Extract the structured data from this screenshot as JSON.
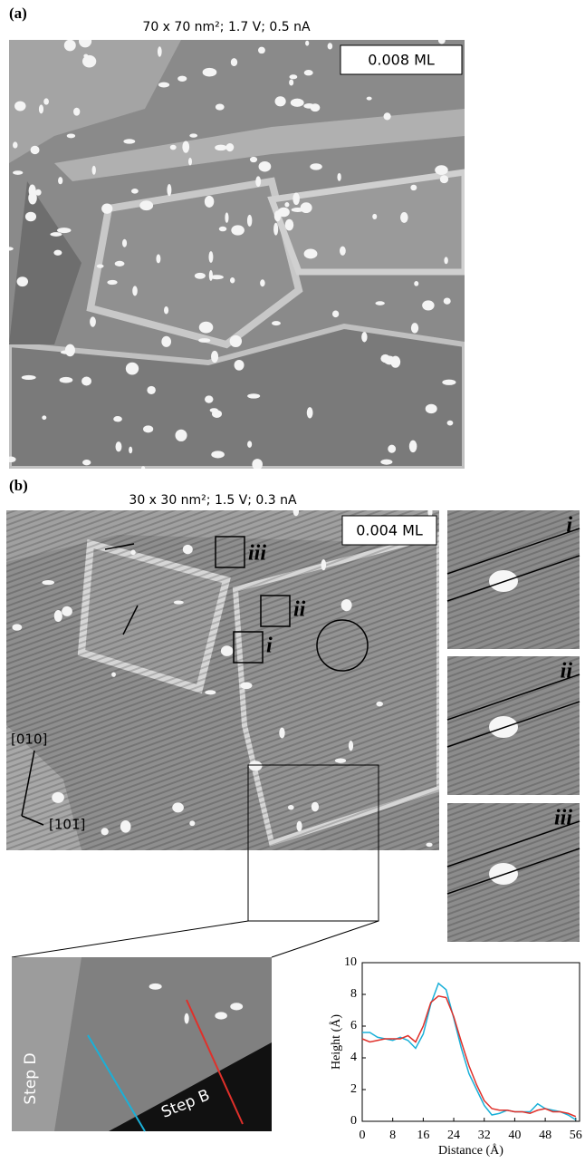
{
  "panel_a": {
    "label": "(a)",
    "caption": "70 x 70 nm²; 1.7 V; 0.5 nA",
    "coverage": "0.008 ML"
  },
  "panel_b": {
    "label": "(b)",
    "caption": "30 x 30 nm²; 1.5 V; 0.3 nA",
    "coverage": "0.004 ML",
    "box_labels": [
      "iii",
      "ii",
      "i"
    ],
    "directions": [
      "[010]",
      "[101̄]"
    ],
    "insets": [
      "i",
      "ii",
      "iii"
    ],
    "steps": [
      "Step D",
      "Step B"
    ]
  },
  "chart_data": {
    "type": "line",
    "xlabel": "Distance (Å)",
    "ylabel": "Height (Å)",
    "x": [
      0,
      2,
      4,
      6,
      8,
      10,
      12,
      14,
      16,
      18,
      20,
      22,
      24,
      26,
      28,
      30,
      32,
      34,
      36,
      38,
      40,
      42,
      44,
      46,
      48,
      50,
      52,
      54,
      56
    ],
    "series": [
      {
        "color": "#1ab0d8",
        "values": [
          5.6,
          5.6,
          5.3,
          5.2,
          5.1,
          5.3,
          5.1,
          4.6,
          5.5,
          7.4,
          8.7,
          8.3,
          6.5,
          4.6,
          3.0,
          2.0,
          1.0,
          0.4,
          0.5,
          0.7,
          0.6,
          0.6,
          0.6,
          1.1,
          0.8,
          0.7,
          0.6,
          0.4,
          0.1
        ]
      },
      {
        "color": "#e0302a",
        "values": [
          5.2,
          5.0,
          5.1,
          5.2,
          5.2,
          5.2,
          5.4,
          5.0,
          6.0,
          7.5,
          7.9,
          7.8,
          6.6,
          5.0,
          3.5,
          2.3,
          1.3,
          0.8,
          0.7,
          0.7,
          0.6,
          0.6,
          0.5,
          0.7,
          0.8,
          0.6,
          0.6,
          0.5,
          0.3
        ]
      }
    ],
    "xlim": [
      0,
      57
    ],
    "ylim": [
      0,
      10
    ],
    "xticks": [
      0,
      8,
      16,
      24,
      32,
      40,
      48,
      56
    ],
    "yticks": [
      0,
      2,
      4,
      6,
      8,
      10
    ]
  }
}
